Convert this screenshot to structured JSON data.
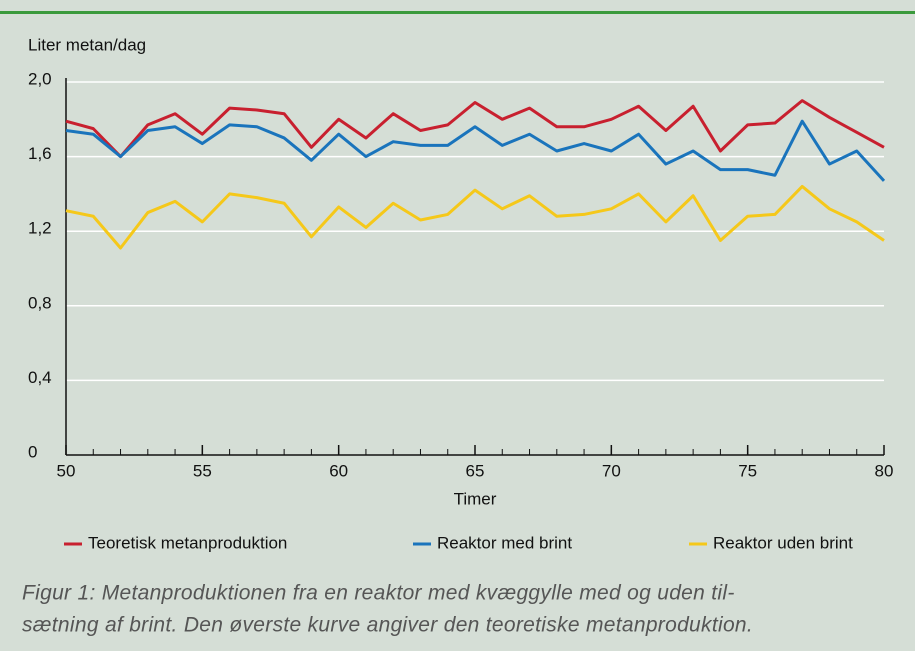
{
  "chart_data": {
    "type": "line",
    "y_label": "Liter metan/dag",
    "x_label": "Timer",
    "x": [
      50,
      51,
      52,
      53,
      54,
      55,
      56,
      57,
      58,
      59,
      60,
      61,
      62,
      63,
      64,
      65,
      66,
      67,
      68,
      69,
      70,
      71,
      72,
      73,
      74,
      75,
      76,
      77,
      78,
      79,
      80
    ],
    "series": [
      {
        "name": "Teoretisk metanproduktion",
        "color": "#c8202f",
        "values": [
          1.79,
          1.75,
          1.6,
          1.77,
          1.83,
          1.72,
          1.86,
          1.85,
          1.83,
          1.65,
          1.8,
          1.7,
          1.83,
          1.74,
          1.77,
          1.89,
          1.8,
          1.86,
          1.76,
          1.76,
          1.8,
          1.87,
          1.74,
          1.87,
          1.63,
          1.77,
          1.78,
          1.9,
          1.81,
          1.73,
          1.65
        ]
      },
      {
        "name": "Reaktor med brint",
        "color": "#1a74bc",
        "values": [
          1.74,
          1.72,
          1.6,
          1.74,
          1.76,
          1.67,
          1.77,
          1.76,
          1.7,
          1.58,
          1.72,
          1.6,
          1.68,
          1.66,
          1.66,
          1.76,
          1.66,
          1.72,
          1.63,
          1.67,
          1.63,
          1.72,
          1.56,
          1.63,
          1.53,
          1.53,
          1.5,
          1.79,
          1.56,
          1.63,
          1.47
        ]
      },
      {
        "name": "Reaktor uden brint",
        "color": "#f5c81a",
        "values": [
          1.31,
          1.28,
          1.11,
          1.3,
          1.36,
          1.25,
          1.4,
          1.38,
          1.35,
          1.17,
          1.33,
          1.22,
          1.35,
          1.26,
          1.29,
          1.42,
          1.32,
          1.39,
          1.28,
          1.29,
          1.32,
          1.4,
          1.25,
          1.39,
          1.15,
          1.28,
          1.29,
          1.44,
          1.32,
          1.25,
          1.15
        ]
      }
    ],
    "xlim": [
      50,
      80
    ],
    "xticks": [
      50,
      55,
      60,
      65,
      70,
      75,
      80
    ],
    "ylim": [
      0,
      2
    ],
    "yticks": [
      0,
      {
        "value": 0.4,
        "label": "0,4"
      },
      {
        "value": 0.8,
        "label": "0,8"
      },
      {
        "value": 1.2,
        "label": "1,2"
      },
      {
        "value": 1.6,
        "label": "1,6"
      },
      {
        "value": 2,
        "label": "2,0"
      }
    ],
    "grid": true,
    "legend": "bottom",
    "caption": [
      "Figur 1: Metanproduktionen fra en reaktor med kvæggylle med og uden til-",
      "sætning af brint. Den øverste kurve angiver den teoretiske metanproduktion."
    ]
  }
}
